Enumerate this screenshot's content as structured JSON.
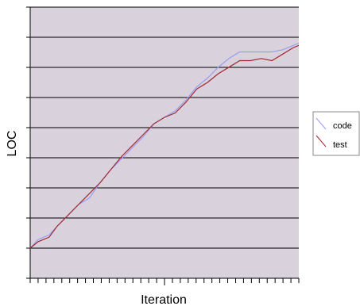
{
  "chart_data": {
    "type": "line",
    "xlabel": "Iteration",
    "ylabel": "LOC",
    "x_tick_count": 34,
    "y_gridlines": 8,
    "grid": true,
    "legend_position": "right",
    "xlim": [
      0,
      100
    ],
    "ylim": [
      0,
      100
    ],
    "series": [
      {
        "name": "code",
        "color": "#9a9cf2",
        "x": [
          0,
          3,
          7,
          10,
          14,
          18,
          22,
          26,
          30,
          34,
          38,
          42,
          46,
          50,
          54,
          58,
          62,
          66,
          70,
          74,
          78,
          82,
          86,
          90,
          94,
          98,
          100
        ],
        "y": [
          0,
          4,
          6,
          10,
          15,
          20,
          23,
          30,
          36,
          41,
          46,
          51,
          57,
          60,
          63,
          68,
          74,
          78,
          83,
          87,
          90,
          90,
          90,
          90,
          91,
          93,
          94
        ]
      },
      {
        "name": "test",
        "color": "#a0282f",
        "x": [
          0,
          3,
          7,
          10,
          14,
          18,
          22,
          26,
          30,
          34,
          38,
          42,
          46,
          50,
          54,
          58,
          62,
          66,
          70,
          74,
          78,
          82,
          86,
          90,
          94,
          98,
          100
        ],
        "y": [
          0,
          3,
          5,
          10,
          15,
          20,
          25,
          30,
          36,
          42,
          47,
          52,
          57,
          60,
          62,
          67,
          73,
          76,
          80,
          83,
          86,
          86,
          87,
          86,
          89,
          92,
          93
        ]
      }
    ]
  }
}
